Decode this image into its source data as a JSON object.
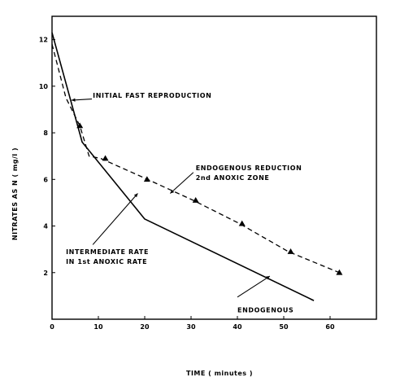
{
  "chart_data": {
    "type": "line",
    "xlabel": "TIME ( minutes )",
    "ylabel": "NITRATES AS N ( mg/l )",
    "xlim": [
      0,
      70
    ],
    "ylim": [
      0,
      13
    ],
    "xticks": [
      0,
      10,
      20,
      30,
      40,
      50,
      60
    ],
    "yticks": [
      2,
      4,
      6,
      8,
      10,
      12
    ],
    "grid": false,
    "series": [
      {
        "style": "solid",
        "color": "#000000",
        "x": [
          0,
          6.5,
          20,
          56.5
        ],
        "y": [
          12.3,
          7.6,
          4.3,
          0.8
        ]
      },
      {
        "style": "dashed",
        "color": "#000000",
        "marker": "triangle",
        "x": [
          0,
          3,
          6,
          8,
          10.5,
          19.5,
          30.5,
          40.5,
          51,
          62
        ],
        "y": [
          11.8,
          9.5,
          8.3,
          7.0,
          6.9,
          6.1,
          5.1,
          4.1,
          2.9,
          2.0
        ],
        "marker_points": [
          [
            6,
            8.3
          ],
          [
            11.5,
            6.9
          ],
          [
            20.5,
            6.0
          ],
          [
            31,
            5.1
          ],
          [
            41,
            4.1
          ],
          [
            51.5,
            2.9
          ],
          [
            62,
            2.0
          ]
        ]
      }
    ],
    "annotations": [
      {
        "line1": "INITIAL FAST REPRODUCTION",
        "line2": "",
        "text_x": 8.8,
        "text_y": 9.5,
        "leader": [
          [
            8.6,
            9.45
          ],
          [
            4.2,
            9.4
          ]
        ]
      },
      {
        "line1": "ENDOGENOUS REDUCTION",
        "line2": "2nd ANOXIC ZONE",
        "text_x": 31,
        "text_y": 6.4,
        "leader": [
          [
            30.5,
            6.3
          ],
          [
            25.5,
            5.4
          ]
        ]
      },
      {
        "line1": "INTERMEDIATE RATE",
        "line2": "IN 1st ANOXIC RATE",
        "text_x": 3,
        "text_y": 2.8,
        "leader": [
          [
            8.8,
            3.2
          ],
          [
            18.5,
            5.4
          ]
        ]
      },
      {
        "line1": "ENDOGENOUS",
        "line2": "",
        "text_x": 40,
        "text_y": 0.3,
        "leader": [
          [
            40,
            0.95
          ],
          [
            47,
            1.85
          ]
        ]
      }
    ]
  }
}
